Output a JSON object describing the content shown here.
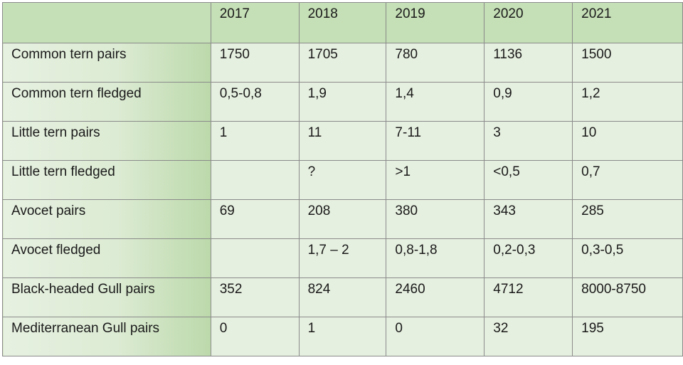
{
  "table": {
    "columns": [
      "",
      "2017",
      "2018",
      "2019",
      "2020",
      "2021"
    ],
    "rows": [
      {
        "label": "Common tern pairs",
        "values": [
          "1750",
          "1705",
          "780",
          "1136",
          "1500"
        ]
      },
      {
        "label": "Common tern fledged",
        "values": [
          "0,5-0,8",
          "1,9",
          "1,4",
          "0,9",
          "1,2"
        ]
      },
      {
        "label": "Little tern pairs",
        "values": [
          "1",
          "11",
          "7-11",
          "3",
          "10"
        ]
      },
      {
        "label": "Little tern fledged",
        "values": [
          "",
          "?",
          ">1",
          "<0,5",
          "0,7"
        ]
      },
      {
        "label": "Avocet pairs",
        "values": [
          "69",
          "208",
          "380",
          "343",
          "285"
        ]
      },
      {
        "label": "Avocet fledged",
        "values": [
          "",
          "1,7 – 2",
          "0,8-1,8",
          "0,2-0,3",
          "0,3-0,5"
        ]
      },
      {
        "label": "Black-headed Gull pairs",
        "values": [
          "352",
          "824",
          "2460",
          "4712",
          "8000-8750"
        ]
      },
      {
        "label": "Mediterranean Gull pairs",
        "values": [
          "0",
          "1",
          "0",
          "32",
          "195"
        ]
      }
    ]
  },
  "colors": {
    "header_fill": "#c5dfb6",
    "cell_fill": "#e6f0e0",
    "row_label_fill": "#dcebd3",
    "border": "#8a8a8a",
    "text": "#1a1a1a"
  }
}
